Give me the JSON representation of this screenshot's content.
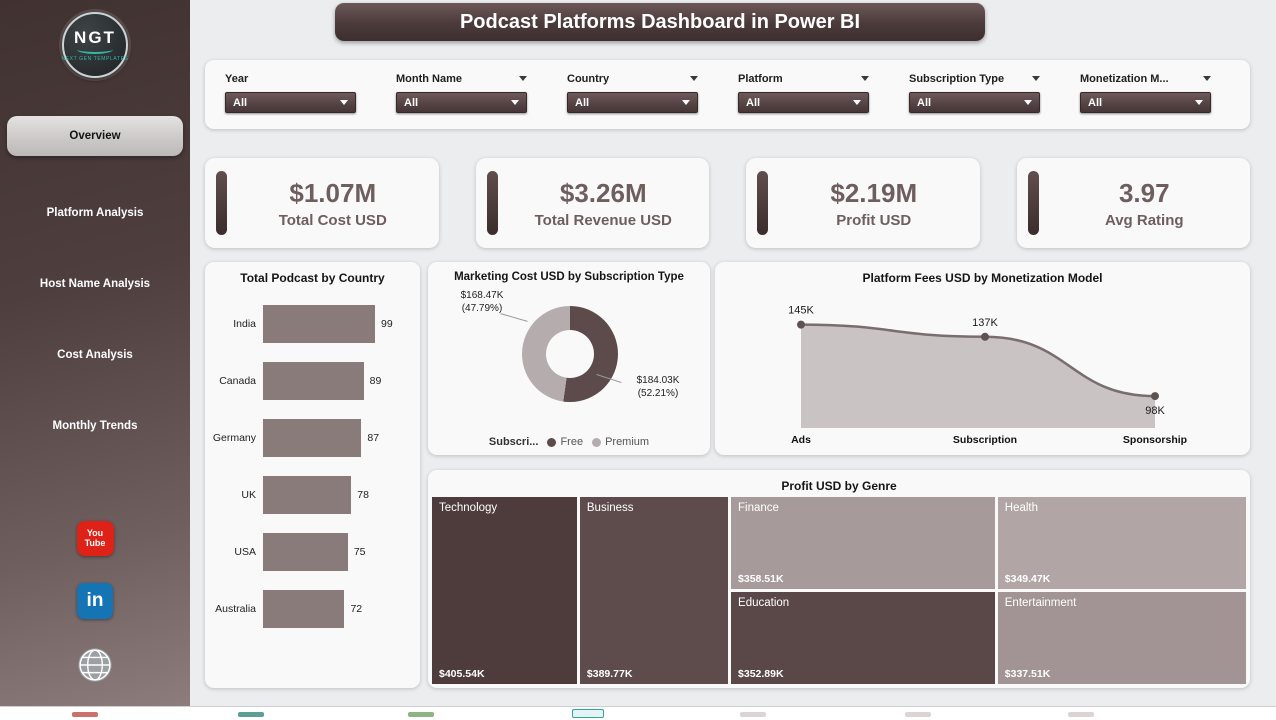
{
  "theme": {
    "accent_dark": "#4a3939",
    "accent_mid": "#6e5e5e",
    "bar_color": "#8a7b7b",
    "area_fill": "#c9c3c3",
    "area_line": "#7a6d6d",
    "marker_color": "#5f5252",
    "teal": "#35b5aa"
  },
  "header": {
    "title": "Podcast Platforms Dashboard in Power BI"
  },
  "sidebar": {
    "logo": {
      "text": "NGT",
      "subtext": "NEXT GEN TEMPLATES"
    },
    "items": [
      {
        "label": "Overview",
        "active": true
      },
      {
        "label": "Platform Analysis",
        "active": false
      },
      {
        "label": "Host Name Analysis",
        "active": false
      },
      {
        "label": "Cost Analysis",
        "active": false
      },
      {
        "label": "Monthly Trends",
        "active": false
      }
    ],
    "social_labels": {
      "youtube_top": "You",
      "youtube_bottom": "Tube",
      "linkedin": "in"
    }
  },
  "filters": [
    {
      "label": "Year",
      "value": "All",
      "header_chevron": false
    },
    {
      "label": "Month Name",
      "value": "All",
      "header_chevron": true
    },
    {
      "label": "Country",
      "value": "All",
      "header_chevron": true
    },
    {
      "label": "Platform",
      "value": "All",
      "header_chevron": true
    },
    {
      "label": "Subscription Type",
      "value": "All",
      "header_chevron": true
    },
    {
      "label": "Monetization M...",
      "value": "All",
      "header_chevron": true
    }
  ],
  "kpis": [
    {
      "value": "$1.07M",
      "label": "Total Cost USD"
    },
    {
      "value": "$3.26M",
      "label": "Total Revenue USD"
    },
    {
      "value": "$2.19M",
      "label": "Profit USD"
    },
    {
      "value": "3.97",
      "label": "Avg Rating"
    }
  ],
  "chart_data": [
    {
      "type": "bar",
      "title": "Total Podcast by Country",
      "orientation": "horizontal",
      "categories": [
        "India",
        "Canada",
        "Germany",
        "UK",
        "USA",
        "Australia"
      ],
      "values": [
        99,
        89,
        87,
        78,
        75,
        72
      ],
      "xlim": [
        0,
        99
      ]
    },
    {
      "type": "pie",
      "title": "Marketing Cost USD by Subscription Type",
      "legend_title": "Subscri...",
      "legend_position": "bottom",
      "slices": [
        {
          "label": "Free",
          "amount": "$184.03K",
          "pct": "(52.21%)",
          "percent": 52.21,
          "color": "#5d4a4a"
        },
        {
          "label": "Premium",
          "amount": "$168.47K",
          "pct": "(47.79%)",
          "percent": 47.79,
          "color": "#b5adad"
        }
      ]
    },
    {
      "type": "area",
      "title": "Platform Fees USD by Monetization Model",
      "categories": [
        "Ads",
        "Subscription",
        "Sponsorship"
      ],
      "values": [
        145,
        137,
        98
      ],
      "value_labels": [
        "145K",
        "137K",
        "98K"
      ]
    },
    {
      "type": "treemap",
      "title": "Profit USD by Genre",
      "items": [
        {
          "label": "Technology",
          "value": "$405.54K",
          "color": "#4e3c3c"
        },
        {
          "label": "Business",
          "value": "$389.77K",
          "color": "#5e4b4b"
        },
        {
          "label": "Finance",
          "value": "$358.51K",
          "color": "#a79a9a"
        },
        {
          "label": "Health",
          "value": "$349.47K",
          "color": "#b2a5a5"
        },
        {
          "label": "Education",
          "value": "$352.89K",
          "color": "#5a4747"
        },
        {
          "label": "Entertainment",
          "value": "$337.51K",
          "color": "#a29494"
        }
      ]
    }
  ]
}
